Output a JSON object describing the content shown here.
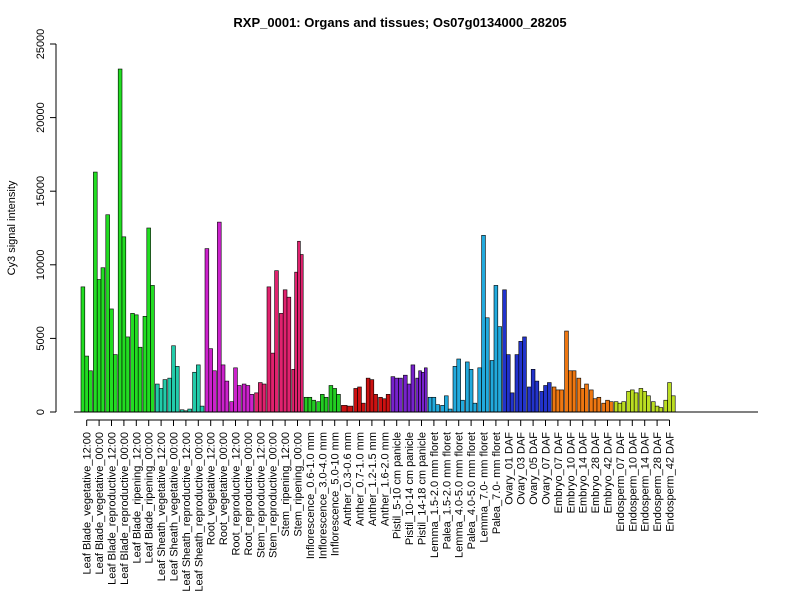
{
  "chart_data": {
    "type": "bar",
    "title": "RXP_0001: Organs and tissues; Os07g0134000_28205",
    "xlabel": "",
    "ylabel": "Cy3 signal intensity",
    "ylim": [
      0,
      25000
    ],
    "yticks": [
      0,
      5000,
      10000,
      15000,
      20000,
      25000
    ],
    "grid": false,
    "legend": "none",
    "groups": [
      {
        "label": "Leaf Blade_vegetative_12:00",
        "color": "#22dd22",
        "values": [
          8500,
          3800,
          2800
        ]
      },
      {
        "label": "Leaf Blade_vegetative_00:00",
        "color": "#22dd22",
        "values": [
          16300,
          9000,
          9800
        ]
      },
      {
        "label": "Leaf Blade_reproductive_12:00",
        "color": "#22dd22",
        "values": [
          13400,
          7000,
          3900
        ]
      },
      {
        "label": "Leaf Blade_reproductive_00:00",
        "color": "#22dd22",
        "values": [
          23300,
          11900,
          5100
        ]
      },
      {
        "label": "Leaf Blade_ripening_12:00",
        "color": "#22dd22",
        "values": [
          6700,
          6600,
          4400
        ]
      },
      {
        "label": "Leaf Blade_ripening_00:00",
        "color": "#22dd22",
        "values": [
          6500,
          12500,
          8600
        ]
      },
      {
        "label": "Leaf Sheath_vegetative_12:00",
        "color": "#22ccaa",
        "values": [
          1900,
          1600,
          2200
        ]
      },
      {
        "label": "Leaf Sheath_vegetative_00:00",
        "color": "#22ccaa",
        "values": [
          2300,
          4500,
          3100
        ]
      },
      {
        "label": "Leaf Sheath_reproductive_12:00",
        "color": "#22ccaa",
        "values": [
          150,
          80,
          200
        ]
      },
      {
        "label": "Leaf Sheath_reproductive_00:00",
        "color": "#22ccaa",
        "values": [
          2700,
          3200,
          400
        ]
      },
      {
        "label": "Root_vegetative_12:00",
        "color": "#cc22cc",
        "values": [
          11100,
          4300,
          2800
        ]
      },
      {
        "label": "Root_vegetative_00:00",
        "color": "#cc22cc",
        "values": [
          12900,
          3200,
          2100
        ]
      },
      {
        "label": "Root_reproductive_12:00",
        "color": "#cc22cc",
        "values": [
          700,
          3000,
          1800
        ]
      },
      {
        "label": "Root_reproductive_00:00",
        "color": "#cc22cc",
        "values": [
          1900,
          1800,
          1200
        ]
      },
      {
        "label": "Stem_reproductive_12:00",
        "color": "#e0226e",
        "values": [
          1300,
          2000,
          1900
        ]
      },
      {
        "label": "Stem_reproductive_00:00",
        "color": "#e0226e",
        "values": [
          8500,
          4000,
          9600
        ]
      },
      {
        "label": "Stem_ripening_12:00",
        "color": "#e0226e",
        "values": [
          6700,
          8300,
          7800
        ]
      },
      {
        "label": "Stem_ripening_00:00",
        "color": "#e0226e",
        "values": [
          2900,
          9500,
          11600,
          10700
        ]
      },
      {
        "label": "Inflorescence_0.6-1.0 mm",
        "color": "#22cc22",
        "values": [
          1000,
          1000,
          800
        ]
      },
      {
        "label": "Inflorescence_3.0-4.0 mm",
        "color": "#22cc22",
        "values": [
          700,
          1200,
          1000
        ]
      },
      {
        "label": "Inflorescence_5.0-10 mm",
        "color": "#22cc22",
        "values": [
          1800,
          1600,
          1200
        ]
      },
      {
        "label": "Anther_0.3-0.6 mm",
        "color": "#cc1111",
        "values": [
          450,
          400
        ]
      },
      {
        "label": "Anther_0.7-1.0 mm",
        "color": "#cc1111",
        "values": [
          1600,
          1700,
          600
        ]
      },
      {
        "label": "Anther_1.2-1.5 mm",
        "color": "#cc1111",
        "values": [
          2300,
          2200,
          1200
        ]
      },
      {
        "label": "Anther_1.6-2.0 mm",
        "color": "#cc1111",
        "values": [
          1000,
          900,
          1200
        ]
      },
      {
        "label": "Pistil_5-10 cm panicle",
        "color": "#7722cc",
        "values": [
          2400,
          2300,
          2300
        ]
      },
      {
        "label": "Pistil_10-14 cm panicle",
        "color": "#7722cc",
        "values": [
          2500,
          1900,
          3200
        ]
      },
      {
        "label": "Pistil_14-18 cm panicle",
        "color": "#7722cc",
        "values": [
          2300,
          2800,
          2700,
          3000
        ]
      },
      {
        "label": "Lemma_1.5-2.0 mm floret",
        "color": "#22aadd",
        "values": [
          1000,
          1000,
          500
        ]
      },
      {
        "label": "Palea_1.5-2.0 mm floret",
        "color": "#22aadd",
        "values": [
          450,
          1100,
          200
        ]
      },
      {
        "label": "Lemma_4.0-5.0 mm floret",
        "color": "#22aadd",
        "values": [
          3100,
          3600,
          800
        ]
      },
      {
        "label": "Palea_4.0-5.0 mm floret",
        "color": "#22aadd",
        "values": [
          3400,
          2900,
          600
        ]
      },
      {
        "label": "Lemma_7.0- mm floret",
        "color": "#22aadd",
        "values": [
          3000,
          12000,
          6400
        ]
      },
      {
        "label": "Palea_7.0- mm floret",
        "color": "#22aadd",
        "values": [
          3500,
          8600,
          5800
        ]
      },
      {
        "label": "Ovary_01 DAF",
        "color": "#2233cc",
        "values": [
          8300,
          3900,
          1300
        ]
      },
      {
        "label": "Ovary_03 DAF",
        "color": "#2233cc",
        "values": [
          3900,
          4800,
          5100
        ]
      },
      {
        "label": "Ovary_05 DAF",
        "color": "#2233cc",
        "values": [
          1700,
          2900,
          2100
        ]
      },
      {
        "label": "Ovary_07 DAF",
        "color": "#2233cc",
        "values": [
          1400,
          1800,
          2000
        ]
      },
      {
        "label": "Embryo_07 DAF",
        "color": "#ee7711",
        "values": [
          1700,
          1500,
          1500
        ]
      },
      {
        "label": "Embryo_10 DAF",
        "color": "#ee7711",
        "values": [
          5500,
          2800,
          2800
        ]
      },
      {
        "label": "Embryo_14 DAF",
        "color": "#ee7711",
        "values": [
          2300,
          1600,
          1900
        ]
      },
      {
        "label": "Embryo_28 DAF",
        "color": "#ee7711",
        "values": [
          1500,
          900,
          1000
        ]
      },
      {
        "label": "Embryo_42 DAF",
        "color": "#ee7711",
        "values": [
          600,
          800,
          700
        ]
      },
      {
        "label": "Endosperm_07 DAF",
        "color": "#bbdd22",
        "values": [
          700,
          600,
          700
        ]
      },
      {
        "label": "Endosperm_10 DAF",
        "color": "#bbdd22",
        "values": [
          1400,
          1500,
          1300
        ]
      },
      {
        "label": "Endosperm_14 DAF",
        "color": "#bbdd22",
        "values": [
          1600,
          1400,
          1100
        ]
      },
      {
        "label": "Endosperm_28 DAF",
        "color": "#bbdd22",
        "values": [
          700,
          400,
          300
        ]
      },
      {
        "label": "Endosperm_42 DAF",
        "color": "#bbdd22",
        "values": [
          800,
          2000,
          1100
        ]
      }
    ]
  }
}
